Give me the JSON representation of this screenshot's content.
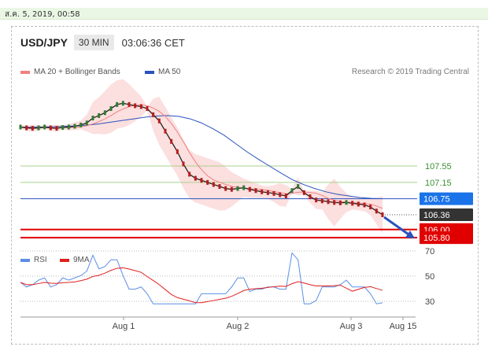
{
  "timestamp": "ส.ค. 5, 2019, 00:58",
  "header": {
    "pair": "USD/JPY",
    "timeframe": "30 MIN",
    "time": "03:06:36 CET"
  },
  "legend": {
    "ma20": {
      "label": "MA 20 + Bollinger Bands",
      "color": "#f08080"
    },
    "ma50": {
      "label": "MA 50",
      "color": "#2a52be"
    }
  },
  "credit": "Research © 2019 Trading Central",
  "rsi_legend": {
    "rsi": {
      "label": "RSI",
      "color": "#5b8ee6"
    },
    "ma9": {
      "label": "9MA",
      "color": "#e02020"
    }
  },
  "chart_data": {
    "type": "line",
    "price_levels": [
      {
        "value": 107.55,
        "label": "107.55",
        "style": "green-line"
      },
      {
        "value": 107.15,
        "label": "107.15",
        "style": "green-line"
      },
      {
        "value": 106.75,
        "label": "106.75",
        "style": "blue-line",
        "badge_color": "#1a73e8"
      },
      {
        "value": 106.36,
        "label": "106.36",
        "style": "current",
        "badge_color": "#333333"
      },
      {
        "value": 106.0,
        "label": "106.00",
        "style": "red-line",
        "badge_color": "#e00000"
      },
      {
        "value": 105.8,
        "label": "105.80",
        "style": "red-line",
        "badge_color": "#e00000"
      }
    ],
    "x_ticks": [
      "Aug 1",
      "Aug 2",
      "Aug 3",
      "Aug 15"
    ],
    "rsi_ticks": [
      70,
      50,
      30
    ],
    "price_series": [
      108.5,
      108.48,
      108.47,
      108.48,
      108.5,
      108.48,
      108.47,
      108.49,
      108.5,
      108.52,
      108.55,
      108.6,
      108.72,
      108.78,
      108.85,
      108.95,
      109.05,
      109.08,
      109.05,
      109.02,
      109.0,
      108.95,
      108.8,
      108.65,
      108.4,
      108.15,
      107.9,
      107.6,
      107.35,
      107.25,
      107.2,
      107.15,
      107.1,
      107.05,
      107.0,
      106.98,
      107.0,
      107.02,
      106.98,
      106.95,
      106.92,
      106.9,
      106.88,
      106.85,
      106.82,
      106.95,
      107.05,
      106.9,
      106.8,
      106.72,
      106.7,
      106.68,
      106.66,
      106.65,
      106.66,
      106.64,
      106.62,
      106.6,
      106.55,
      106.45,
      106.36
    ],
    "ma50_series": [
      108.5,
      108.5,
      108.5,
      108.51,
      108.52,
      108.53,
      108.55,
      108.58,
      108.62,
      108.66,
      108.7,
      108.74,
      108.77,
      108.78,
      108.76,
      108.7,
      108.6,
      108.46,
      108.3,
      108.1,
      107.9,
      107.72,
      107.55,
      107.38,
      107.22,
      107.1,
      107.0,
      106.92,
      106.86,
      106.82,
      106.78,
      106.76,
      106.75
    ]
  }
}
